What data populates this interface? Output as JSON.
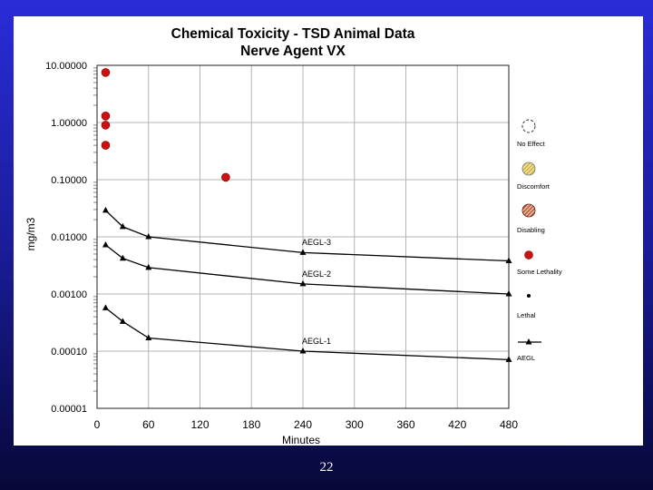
{
  "slide": {
    "page_number": "22"
  },
  "colors": {
    "background_top": "#2a2cd8",
    "background_bottom": "#070838",
    "panel": "#ffffff",
    "marker_red": "#cc1111",
    "line": "#000000"
  },
  "chart_data": {
    "type": "scatter",
    "title": "Chemical Toxicity - TSD Animal Data",
    "subtitle": "Nerve Agent VX",
    "xlabel": "Minutes",
    "ylabel": "mg/m3",
    "y_scale": "log",
    "xlim": [
      0,
      480
    ],
    "ylim": [
      1e-05,
      10
    ],
    "x_ticks": [
      "0",
      "60",
      "120",
      "180",
      "240",
      "300",
      "360",
      "420",
      "480"
    ],
    "y_ticks": [
      "10.00000",
      "1.00000",
      "0.10000",
      "0.01000",
      "0.00100",
      "0.00010",
      "0.00001"
    ],
    "grid": true,
    "legend_placement": "right",
    "legend": [
      {
        "label": "No Effect",
        "icon": "open-circle"
      },
      {
        "label": "Discomfort",
        "icon": "hatched-circle-yellow"
      },
      {
        "label": "Disabling",
        "icon": "hatched-circle-red"
      },
      {
        "label": "Some Lethality",
        "icon": "red-filled-circle"
      },
      {
        "label": "Lethal",
        "icon": "small-black-dot"
      },
      {
        "label": "AEGL",
        "icon": "line-with-triangle"
      }
    ],
    "series": [
      {
        "name": "Some Lethality",
        "marker": "red-circle",
        "points": [
          {
            "x": 10,
            "y": 7.5
          },
          {
            "x": 10,
            "y": 1.3
          },
          {
            "x": 10,
            "y": 0.9
          },
          {
            "x": 10,
            "y": 0.4
          },
          {
            "x": 150,
            "y": 0.11
          }
        ]
      },
      {
        "name": "AEGL-3",
        "label": "AEGL-3",
        "marker": "triangle",
        "points": [
          {
            "x": 10,
            "y": 0.029
          },
          {
            "x": 30,
            "y": 0.015
          },
          {
            "x": 60,
            "y": 0.01
          },
          {
            "x": 240,
            "y": 0.0053
          },
          {
            "x": 480,
            "y": 0.0038
          }
        ]
      },
      {
        "name": "AEGL-2",
        "label": "AEGL-2",
        "marker": "triangle",
        "points": [
          {
            "x": 10,
            "y": 0.0072
          },
          {
            "x": 30,
            "y": 0.0042
          },
          {
            "x": 60,
            "y": 0.0029
          },
          {
            "x": 240,
            "y": 0.0015
          },
          {
            "x": 480,
            "y": 0.001
          }
        ]
      },
      {
        "name": "AEGL-1",
        "label": "AEGL-1",
        "marker": "triangle",
        "points": [
          {
            "x": 10,
            "y": 0.00057
          },
          {
            "x": 30,
            "y": 0.00033
          },
          {
            "x": 60,
            "y": 0.00017
          },
          {
            "x": 240,
            "y": 0.0001
          },
          {
            "x": 480,
            "y": 7.1e-05
          }
        ]
      }
    ]
  }
}
